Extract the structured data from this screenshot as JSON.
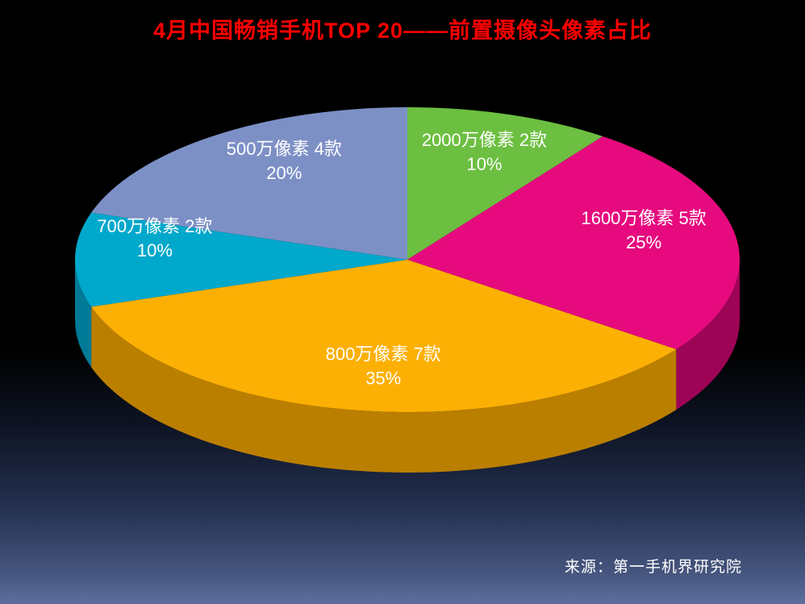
{
  "title": "4月中国畅销手机TOP 20——前置摄像头像素占比",
  "source": "来源：第一手机界研究院",
  "background": {
    "top": "#000000",
    "bottom": "#5d6f9e"
  },
  "title_color": "#ff0000",
  "chart_data": {
    "type": "pie",
    "style": "3d",
    "title": "4月中国畅销手机TOP 20——前置摄像头像素占比",
    "legend": "none",
    "labels_on_chart": true,
    "start_angle_deg": 0,
    "clockwise": true,
    "unit": "percent",
    "slices": [
      {
        "label": "2000万像素 2款",
        "value": 10,
        "percent_label": "10%",
        "color": "#6cbf40",
        "side_color": "#478c28"
      },
      {
        "label": "1600万像素 5款",
        "value": 25,
        "percent_label": "25%",
        "color": "#e60a7e",
        "side_color": "#9e0456"
      },
      {
        "label": "800万像素 7款",
        "value": 35,
        "percent_label": "35%",
        "color": "#fcb004",
        "side_color": "#bb7f00"
      },
      {
        "label": "700万像素 2款",
        "value": 10,
        "percent_label": "10%",
        "color": "#00a8cc",
        "side_color": "#007a96"
      },
      {
        "label": "500万像素 4款",
        "value": 20,
        "percent_label": "20%",
        "color": "#7c90c6",
        "side_color": "#57689a"
      }
    ]
  }
}
